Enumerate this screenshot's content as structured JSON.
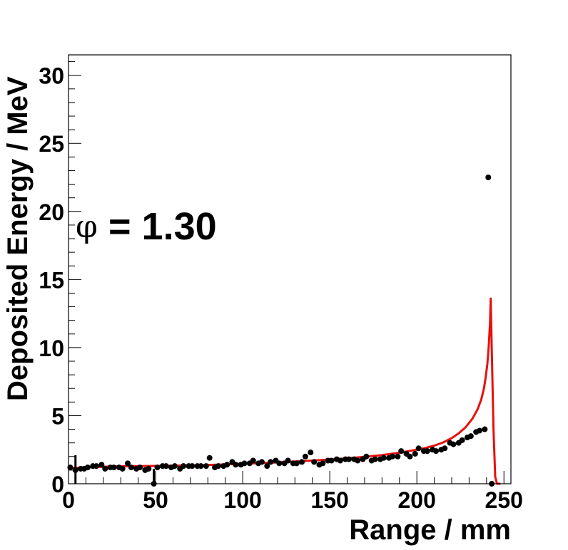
{
  "chart_data": {
    "type": "scatter",
    "xlabel": "Range / mm",
    "ylabel": "Deposited Energy / MeV",
    "xlim": [
      0,
      254
    ],
    "ylim": [
      0,
      31.5
    ],
    "x_ticks": [
      0,
      50,
      100,
      150,
      200,
      250
    ],
    "x_tick_labels": [
      "0",
      "50",
      "100",
      "150",
      "200",
      "250"
    ],
    "y_ticks": [
      0,
      5,
      10,
      15,
      20,
      25,
      30
    ],
    "y_tick_labels": [
      "0",
      "5",
      "10",
      "15",
      "20",
      "25",
      "30"
    ],
    "grid": false,
    "annotation": {
      "symbol": "φ",
      "text": "= 1.30"
    },
    "colors": {
      "points": "#000000",
      "fit": "#e8100c"
    },
    "series": [
      {
        "kind": "points",
        "x": [
          1,
          4,
          7,
          9,
          11,
          14,
          16,
          19,
          21,
          24,
          26,
          29,
          31,
          34,
          36,
          39,
          41,
          44,
          46,
          49,
          51,
          54,
          56,
          59,
          61,
          64,
          66,
          69,
          71,
          74,
          76,
          79,
          81,
          84,
          86,
          89,
          91,
          94,
          96,
          99,
          101,
          104,
          106,
          109,
          111,
          114,
          116,
          119,
          121,
          124,
          126,
          129,
          131,
          134,
          136,
          139,
          141,
          144,
          146,
          149,
          151,
          154,
          156,
          159,
          161,
          164,
          166,
          169,
          171,
          174,
          176,
          179,
          181,
          184,
          186,
          189,
          191,
          194,
          196,
          199,
          201,
          204,
          206,
          209,
          211,
          214,
          216,
          219,
          221,
          224,
          226,
          229,
          231,
          234,
          236,
          239,
          241,
          243
        ],
        "y": [
          1.2,
          1.0,
          1.1,
          1.1,
          1.2,
          1.3,
          1.3,
          1.4,
          1.1,
          1.2,
          1.2,
          1.2,
          1.1,
          1.5,
          1.2,
          1.1,
          1.2,
          1.0,
          1.1,
          0.0,
          1.2,
          1.3,
          1.3,
          1.2,
          1.3,
          1.1,
          1.3,
          1.3,
          1.3,
          1.3,
          1.3,
          1.3,
          1.9,
          1.2,
          1.3,
          1.3,
          1.4,
          1.6,
          1.4,
          1.4,
          1.5,
          1.5,
          1.7,
          1.5,
          1.6,
          1.3,
          1.6,
          1.7,
          1.5,
          1.5,
          1.7,
          1.5,
          1.5,
          1.6,
          2.0,
          2.3,
          1.6,
          1.4,
          1.5,
          1.7,
          1.7,
          1.8,
          1.7,
          1.8,
          1.8,
          1.8,
          1.7,
          1.8,
          2.0,
          1.7,
          1.8,
          1.8,
          1.9,
          1.9,
          2.0,
          2.0,
          2.4,
          2.2,
          2.0,
          2.2,
          2.6,
          2.4,
          2.4,
          2.5,
          2.4,
          2.5,
          2.6,
          3.0,
          2.9,
          3.0,
          3.2,
          3.4,
          3.5,
          3.8,
          3.9,
          4.0,
          22.5,
          0.0
        ],
        "errors": [
          {
            "x": 4,
            "low": 0.0,
            "high": 2.1
          },
          {
            "x": 49,
            "low": 0.0,
            "high": 1.1
          }
        ]
      },
      {
        "kind": "fit-curve",
        "x": [
          0,
          10,
          20,
          30,
          40,
          50,
          60,
          70,
          80,
          90,
          100,
          110,
          120,
          130,
          140,
          150,
          160,
          170,
          180,
          190,
          200,
          205,
          210,
          215,
          220,
          224,
          228,
          232,
          235,
          237,
          238.5,
          239.5,
          240.5,
          241.2,
          242.0,
          242.4,
          243.0,
          244.0,
          245.0,
          246.0,
          247.0,
          248.0
        ],
        "y": [
          1.15,
          1.2,
          1.25,
          1.28,
          1.3,
          1.31,
          1.33,
          1.35,
          1.38,
          1.42,
          1.47,
          1.52,
          1.57,
          1.63,
          1.7,
          1.78,
          1.87,
          1.98,
          2.11,
          2.28,
          2.5,
          2.63,
          2.8,
          3.03,
          3.35,
          3.7,
          4.15,
          4.8,
          5.5,
          6.2,
          7.0,
          7.8,
          8.8,
          10.0,
          11.8,
          13.6,
          10.0,
          4.0,
          0.5,
          0.0,
          0.0,
          0.0
        ]
      }
    ]
  }
}
